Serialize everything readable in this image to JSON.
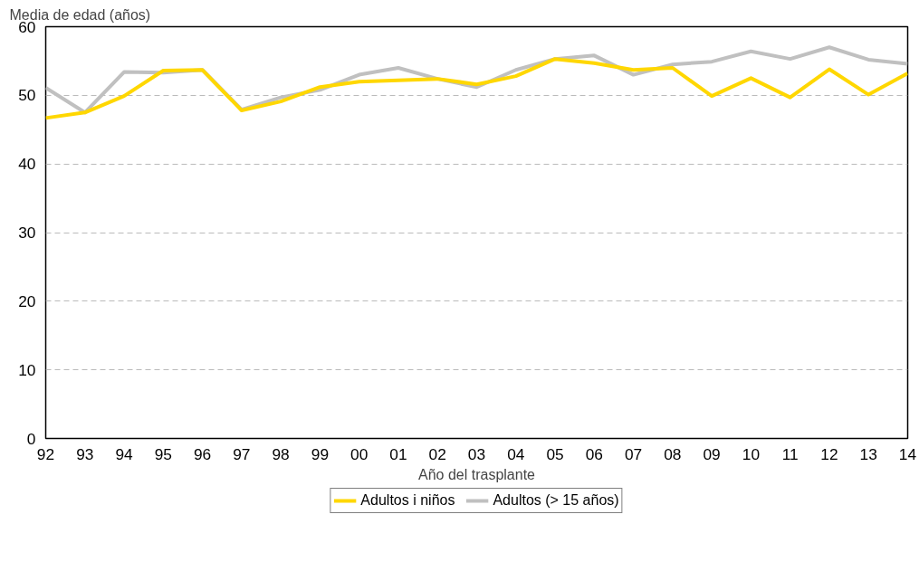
{
  "chart_data": {
    "type": "line",
    "ylabel": "Media de edad (años)",
    "xlabel": "Año del trasplante",
    "categories": [
      "92",
      "93",
      "94",
      "95",
      "96",
      "97",
      "98",
      "99",
      "00",
      "01",
      "02",
      "03",
      "04",
      "05",
      "06",
      "07",
      "08",
      "09",
      "10",
      "11",
      "12",
      "13",
      "14"
    ],
    "series": [
      {
        "name": "Adultos i niños",
        "color": "#ffd700",
        "values": [
          46.7,
          47.5,
          49.9,
          53.6,
          53.7,
          47.8,
          49.1,
          51.2,
          52.0,
          52.2,
          52.4,
          51.6,
          52.8,
          55.3,
          54.7,
          53.7,
          54.0,
          49.9,
          52.5,
          49.7,
          53.8,
          50.1,
          53.2
        ]
      },
      {
        "name": "Adultos (> 15 años)",
        "color": "#c0c0c0",
        "values": [
          51.1,
          47.5,
          53.4,
          53.3,
          53.7,
          47.9,
          49.7,
          50.8,
          53.0,
          54.0,
          52.4,
          51.2,
          53.7,
          55.3,
          55.8,
          53.0,
          54.5,
          54.9,
          56.4,
          55.3,
          57.0,
          55.2,
          54.6
        ]
      }
    ],
    "ylim": [
      0,
      60
    ],
    "yticks": [
      0,
      10,
      20,
      30,
      40,
      50,
      60
    ],
    "grid": "y",
    "legend": "bottom",
    "line_style": "solid",
    "marker": "none"
  }
}
